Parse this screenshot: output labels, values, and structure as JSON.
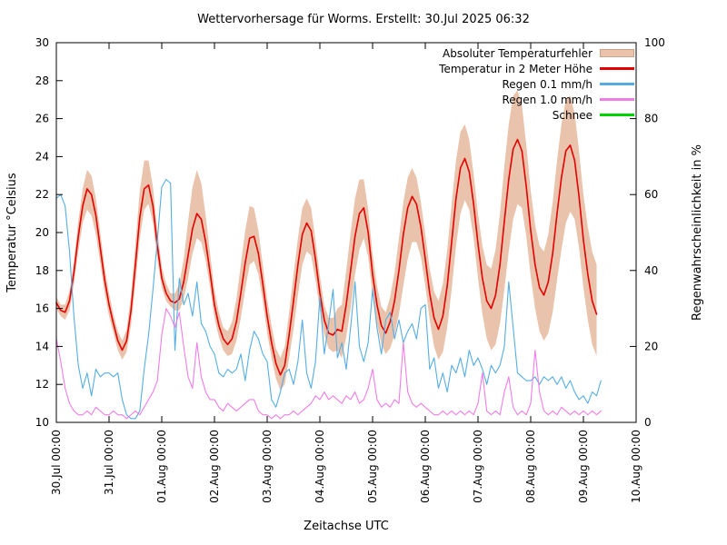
{
  "title": "Wettervorhersage für Worms. Erstellt: 30.Jul 2025 06:32",
  "chart_data": {
    "type": "line",
    "title": "Wettervorhersage für Worms. Erstellt: 30.Jul 2025 06:32",
    "x_axis": {
      "label": "Zeitachse UTC",
      "range_hours": 264,
      "tick_labels": [
        "30.Jul 00:00",
        "31.Jul 00:00",
        "01.Aug 00:00",
        "02.Aug 00:00",
        "03.Aug 00:00",
        "04.Aug 00:00",
        "05.Aug 00:00",
        "06.Aug 00:00",
        "07.Aug 00:00",
        "08.Aug 00:00",
        "09.Aug 00:00",
        "10.Aug 00:00"
      ]
    },
    "y_left": {
      "label": "Temperatur °Celsius",
      "min": 10,
      "max": 30,
      "ticks": [
        10,
        12,
        14,
        16,
        18,
        20,
        22,
        24,
        26,
        28,
        30
      ]
    },
    "y_right": {
      "label": "Regenwahrscheinlichkeit in %",
      "min": 0,
      "max": 100,
      "ticks": [
        0,
        20,
        40,
        60,
        80,
        100
      ]
    },
    "grid": false,
    "legend_position": "top-right",
    "sample_step_hours": 2,
    "series": [
      {
        "name": "Absoluter Temperaturfehler",
        "type": "band",
        "axis": "left",
        "color": "#eac3ac",
        "upper_offset": [
          0.3,
          0.3,
          0.4,
          0.5,
          0.6,
          0.8,
          0.9,
          1.0,
          1.0,
          0.9,
          0.8,
          0.7,
          0.6,
          0.5,
          0.5,
          0.5,
          0.6,
          0.8,
          1.1,
          1.4,
          1.5,
          1.3,
          1.0,
          0.8,
          0.6,
          0.5,
          0.4,
          0.5,
          0.8,
          1.2,
          1.8,
          2.2,
          2.3,
          1.9,
          1.4,
          1.0,
          0.8,
          0.7,
          0.6,
          0.7,
          0.9,
          1.2,
          1.5,
          1.7,
          1.7,
          1.5,
          1.2,
          1.0,
          0.9,
          0.9,
          0.8,
          0.9,
          1.0,
          1.2,
          1.4,
          1.4,
          1.4,
          1.3,
          1.2,
          1.0,
          0.9,
          0.8,
          0.8,
          0.9,
          1.1,
          1.4,
          1.8,
          2.0,
          2.0,
          1.8,
          1.5,
          1.2,
          1.1,
          1.0,
          1.0,
          1.1,
          1.3,
          1.5,
          1.7,
          1.7,
          1.6,
          1.5,
          1.4,
          1.3,
          1.3,
          1.3,
          1.4,
          1.5,
          1.7,
          1.9,
          2.0,
          2.0,
          1.9,
          1.8,
          1.7,
          1.6,
          1.6,
          1.7,
          1.9,
          2.1,
          2.4,
          2.7,
          2.9,
          2.9,
          2.8,
          2.6,
          2.4,
          2.2,
          2.1,
          2.1,
          2.2,
          2.3,
          2.5,
          2.7,
          2.8,
          2.8,
          2.7,
          2.6,
          2.5,
          2.4,
          2.4,
          2.5,
          2.6,
          2.6
        ],
        "lower_offset": [
          0.3,
          0.3,
          0.4,
          0.5,
          0.6,
          0.8,
          0.9,
          1.1,
          1.1,
          1.0,
          0.8,
          0.7,
          0.6,
          0.5,
          0.5,
          0.5,
          0.6,
          0.8,
          1.0,
          1.1,
          1.1,
          1.0,
          0.9,
          0.7,
          0.5,
          0.4,
          0.3,
          0.4,
          0.6,
          0.9,
          1.2,
          1.3,
          1.3,
          1.2,
          1.0,
          0.8,
          0.7,
          0.6,
          0.6,
          0.6,
          0.8,
          1.0,
          1.3,
          1.4,
          1.4,
          1.3,
          1.1,
          0.9,
          0.9,
          0.8,
          0.8,
          0.8,
          1.0,
          1.2,
          1.5,
          1.6,
          1.6,
          1.5,
          1.3,
          1.1,
          0.9,
          0.8,
          0.8,
          0.9,
          1.1,
          1.4,
          1.7,
          2.0,
          2.0,
          1.9,
          1.6,
          1.3,
          1.1,
          1.0,
          1.0,
          1.1,
          1.4,
          1.8,
          2.3,
          2.7,
          2.7,
          2.4,
          2.0,
          1.6,
          1.4,
          1.4,
          1.5,
          1.6,
          1.9,
          2.2,
          2.5,
          2.5,
          2.4,
          2.2,
          2.0,
          1.8,
          1.8,
          1.9,
          2.0,
          2.2,
          2.6,
          3.1,
          3.6,
          3.8,
          3.7,
          3.4,
          3.0,
          2.6,
          2.4,
          2.3,
          2.3,
          2.4,
          2.7,
          3.1,
          3.5,
          3.8,
          3.8,
          3.5,
          3.1,
          2.7,
          2.5,
          2.4,
          2.3,
          2.2
        ]
      },
      {
        "name": "Temperatur in 2 Meter Höhe",
        "type": "line",
        "axis": "left",
        "color": "#e30000",
        "width": 1.6,
        "values": [
          16.3,
          15.9,
          15.8,
          16.4,
          17.9,
          19.8,
          21.4,
          22.3,
          22.0,
          20.9,
          19.2,
          17.5,
          16.2,
          15.2,
          14.3,
          13.8,
          14.3,
          15.9,
          18.3,
          20.8,
          22.3,
          22.5,
          21.4,
          19.3,
          17.6,
          16.8,
          16.4,
          16.3,
          16.5,
          17.4,
          18.8,
          20.2,
          21.0,
          20.7,
          19.5,
          17.9,
          16.2,
          15.1,
          14.4,
          14.1,
          14.4,
          15.3,
          16.8,
          18.4,
          19.7,
          19.8,
          18.9,
          17.3,
          15.6,
          14.2,
          13.1,
          12.5,
          13.0,
          14.6,
          16.4,
          18.3,
          19.9,
          20.5,
          20.1,
          18.6,
          16.8,
          15.4,
          14.7,
          14.6,
          14.9,
          14.8,
          16.2,
          18.0,
          19.8,
          21.0,
          21.3,
          20.0,
          17.8,
          16.2,
          15.1,
          14.7,
          15.3,
          16.4,
          18.0,
          19.9,
          21.3,
          21.9,
          21.5,
          20.3,
          18.6,
          16.8,
          15.5,
          14.9,
          15.6,
          17.2,
          19.5,
          21.8,
          23.4,
          23.9,
          23.2,
          21.5,
          19.4,
          17.6,
          16.4,
          16.0,
          16.7,
          18.3,
          20.6,
          22.8,
          24.4,
          24.9,
          24.3,
          22.4,
          20.1,
          18.3,
          17.1,
          16.7,
          17.4,
          18.9,
          21.0,
          22.9,
          24.3,
          24.6,
          23.8,
          21.9,
          19.6,
          17.8,
          16.4,
          15.7
        ]
      },
      {
        "name": "Regen 0.1 mm/h",
        "type": "line",
        "axis": "right",
        "color": "#56ade4",
        "width": 1.1,
        "values": [
          59,
          60,
          57,
          45,
          28,
          15,
          9,
          13,
          7,
          14,
          12,
          13,
          13,
          12,
          13,
          6,
          2,
          1,
          1,
          3,
          14,
          23,
          35,
          48,
          62,
          64,
          63,
          19,
          38,
          31,
          34,
          28,
          37,
          26,
          24,
          20,
          18,
          13,
          12,
          14,
          13,
          14,
          18,
          11,
          19,
          24,
          22,
          18,
          16,
          6,
          4,
          8,
          13,
          14,
          10,
          16,
          27,
          13,
          9,
          16,
          33,
          18,
          26,
          35,
          17,
          21,
          14,
          25,
          37,
          20,
          16,
          21,
          35,
          25,
          18,
          27,
          29,
          22,
          27,
          21,
          24,
          26,
          22,
          30,
          31,
          14,
          17,
          9,
          13,
          8,
          15,
          13,
          17,
          12,
          19,
          15,
          17,
          14,
          10,
          15,
          13,
          15,
          20,
          37,
          25,
          13,
          12,
          11,
          11,
          12,
          10,
          12,
          11,
          12,
          10,
          12,
          9,
          11,
          8,
          6,
          7,
          5,
          8,
          7,
          11
        ]
      },
      {
        "name": "Regen 1.0 mm/h",
        "type": "line",
        "axis": "right",
        "color": "#ef7de6",
        "width": 1.1,
        "values": [
          22,
          16,
          9,
          5,
          3,
          2,
          2,
          3,
          2,
          4,
          3,
          2,
          2,
          3,
          2,
          2,
          1,
          2,
          3,
          2,
          4,
          6,
          8,
          11,
          23,
          30,
          28,
          25,
          29,
          20,
          12,
          9,
          21,
          12,
          8,
          6,
          6,
          4,
          3,
          5,
          4,
          3,
          4,
          5,
          6,
          6,
          3,
          2,
          2,
          1,
          2,
          1,
          2,
          2,
          3,
          2,
          3,
          4,
          5,
          7,
          6,
          8,
          6,
          7,
          6,
          5,
          7,
          6,
          8,
          5,
          6,
          9,
          14,
          6,
          4,
          5,
          4,
          6,
          5,
          21,
          8,
          5,
          4,
          5,
          4,
          3,
          2,
          2,
          3,
          2,
          3,
          2,
          3,
          2,
          3,
          2,
          5,
          13,
          3,
          2,
          3,
          2,
          8,
          12,
          4,
          2,
          3,
          2,
          5,
          19,
          8,
          3,
          2,
          3,
          2,
          4,
          3,
          2,
          3,
          2,
          3,
          2,
          3,
          2,
          3
        ]
      },
      {
        "name": "Schnee",
        "type": "line",
        "axis": "right",
        "color": "#00d400",
        "width": 1.1,
        "values": []
      }
    ]
  }
}
